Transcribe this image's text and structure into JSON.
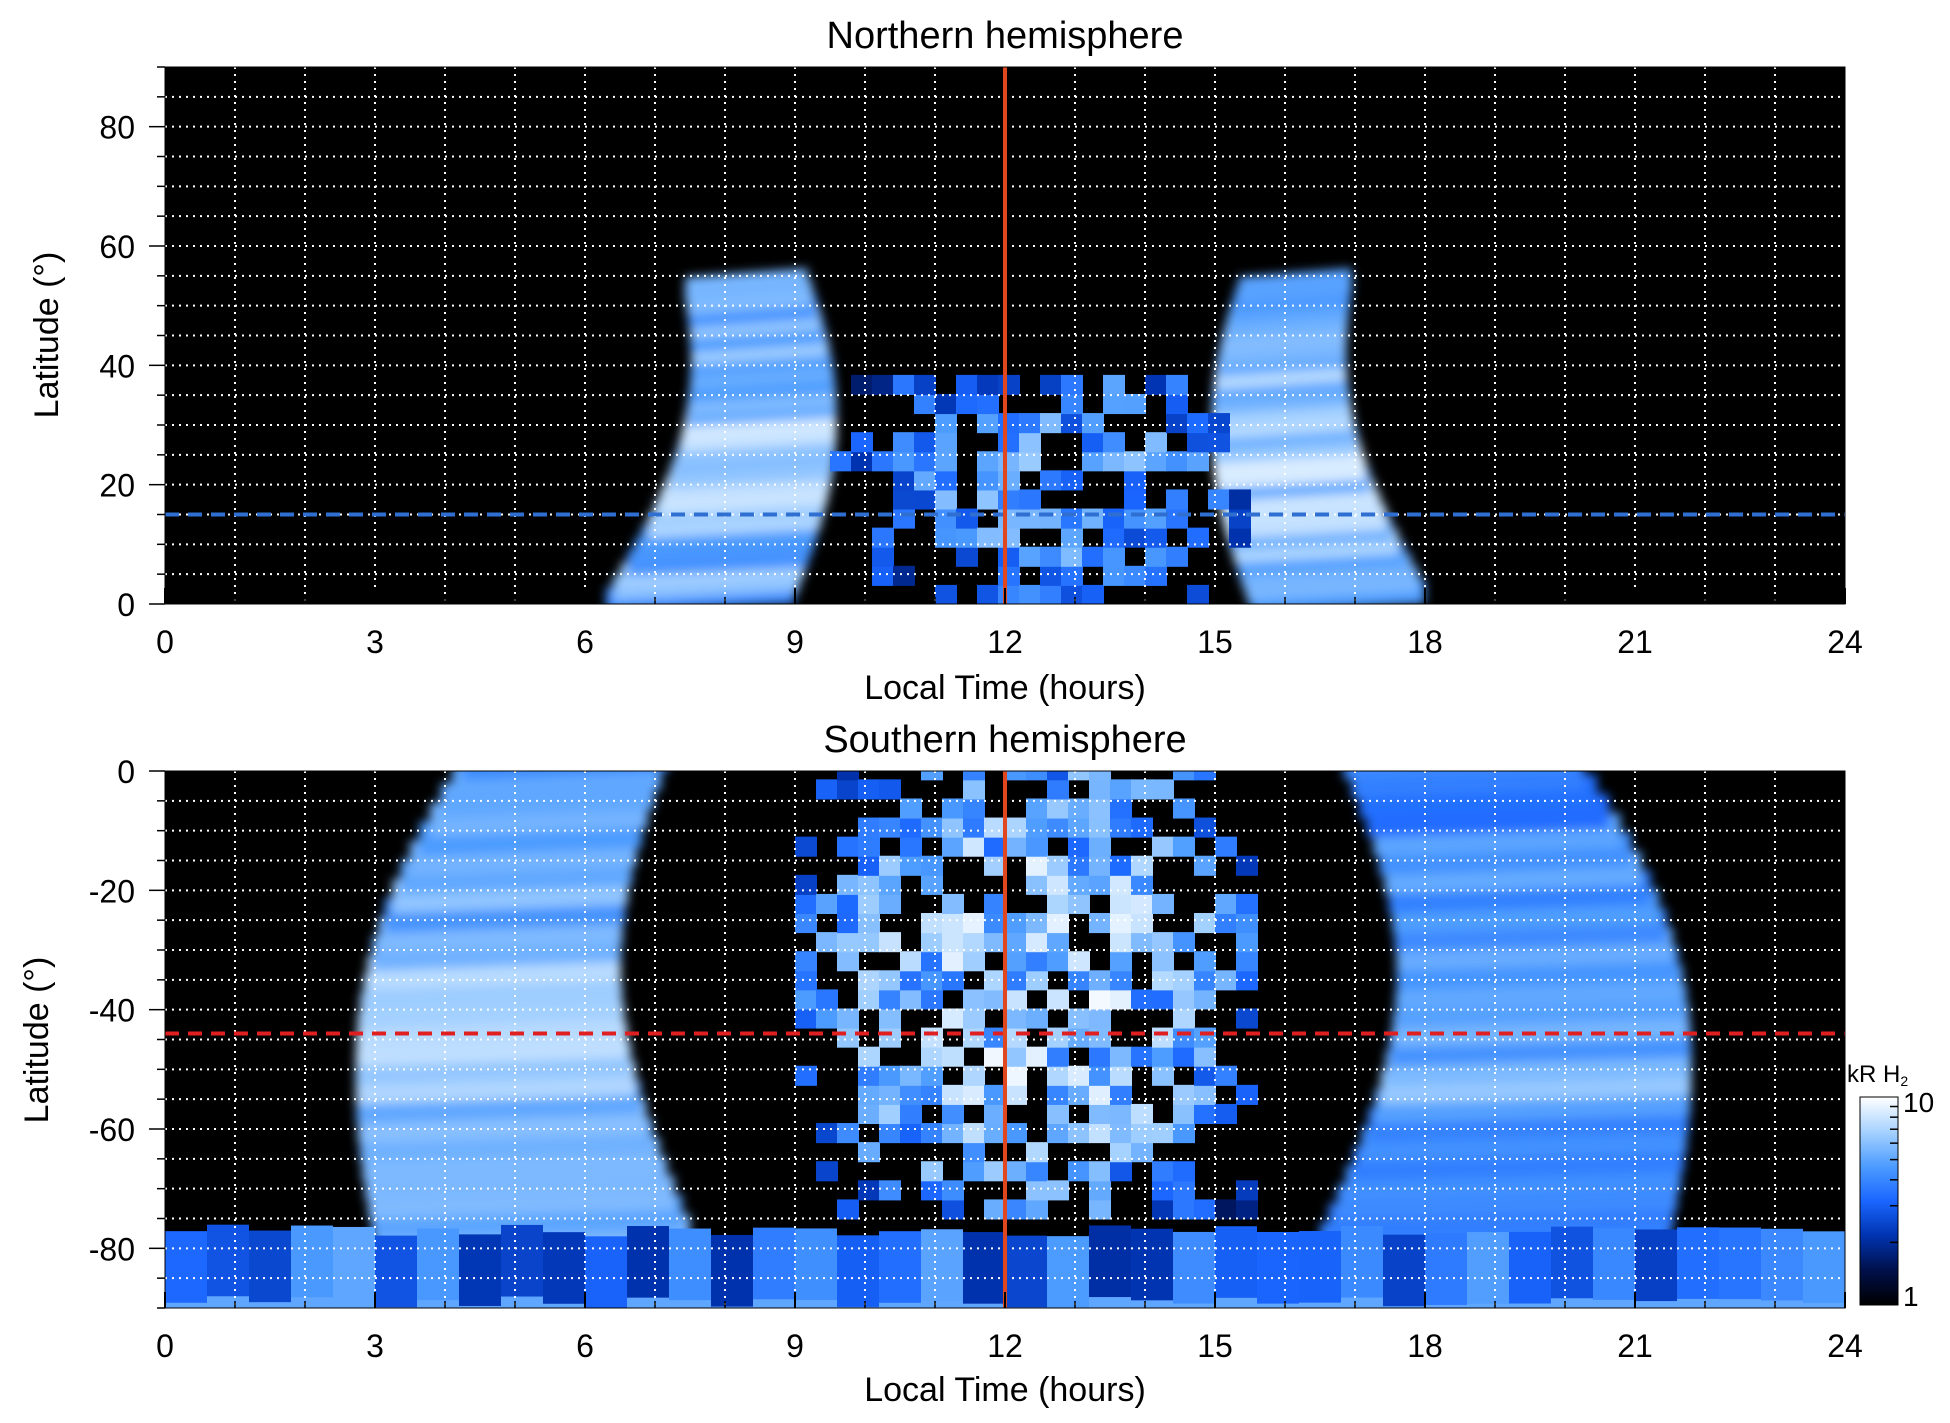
{
  "chart_data": [
    {
      "type": "heatmap",
      "title": "Northern hemisphere",
      "xlabel": "Local Time (hours)",
      "ylabel": "Latitude (°)",
      "xlim": [
        0,
        24
      ],
      "ylim": [
        0,
        90
      ],
      "xticks": [
        "0",
        "3",
        "6",
        "9",
        "12",
        "15",
        "18",
        "21",
        "24"
      ],
      "yticks": [
        "0",
        "20",
        "40",
        "60",
        "80"
      ],
      "grid": true,
      "vertical_line": {
        "x": 12,
        "color": "#e0471f",
        "style": "solid"
      },
      "horizontal_line": {
        "y": 15,
        "color": "#2f6fd1",
        "style": "dashed"
      },
      "features": [
        {
          "kind": "emission_band",
          "x_range": [
            6.3,
            9.0
          ],
          "y_range": [
            0,
            52
          ],
          "peak": 9
        },
        {
          "kind": "emission_band",
          "x_range": [
            15.5,
            18.0
          ],
          "y_range": [
            0,
            52
          ],
          "peak": 9
        },
        {
          "kind": "patchy_region",
          "x_range": [
            9.5,
            15.5
          ],
          "y_range": [
            0,
            38
          ],
          "peak": 7
        }
      ]
    },
    {
      "type": "heatmap",
      "title": "Southern hemisphere",
      "xlabel": "Local Time (hours)",
      "ylabel": "Latitude (°)",
      "xlim": [
        0,
        24
      ],
      "ylim": [
        -90,
        0
      ],
      "xticks": [
        "0",
        "3",
        "6",
        "9",
        "12",
        "15",
        "18",
        "21",
        "24"
      ],
      "yticks": [
        "0",
        "-20",
        "-40",
        "-60",
        "-80"
      ],
      "grid": true,
      "vertical_line": {
        "x": 12,
        "color": "#e0471f",
        "style": "solid"
      },
      "horizontal_line": {
        "y": -44,
        "color": "#e02020",
        "style": "dashed"
      },
      "features": [
        {
          "kind": "emission_band",
          "x_range": [
            3.0,
            7.5
          ],
          "y_range": [
            -80,
            0
          ],
          "peak": 8
        },
        {
          "kind": "emission_band",
          "x_range": [
            16.5,
            21.5
          ],
          "y_range": [
            -80,
            0
          ],
          "peak": 7
        },
        {
          "kind": "patchy_region",
          "x_range": [
            9.0,
            15.5
          ],
          "y_range": [
            -75,
            0
          ],
          "peak": 10
        },
        {
          "kind": "polar_band",
          "x_range": [
            0,
            24
          ],
          "y_range": [
            -90,
            -78
          ],
          "peak": 5
        }
      ]
    }
  ],
  "colorbar": {
    "label": "kR H",
    "label_subscript": "2",
    "scale": "log",
    "min_label": "1",
    "max_label": "10",
    "min": 1,
    "max": 10,
    "colors": [
      "#000000",
      "#00104a",
      "#0033b0",
      "#1a66ff",
      "#4d9cff",
      "#a6d2ff",
      "#ffffff"
    ]
  }
}
